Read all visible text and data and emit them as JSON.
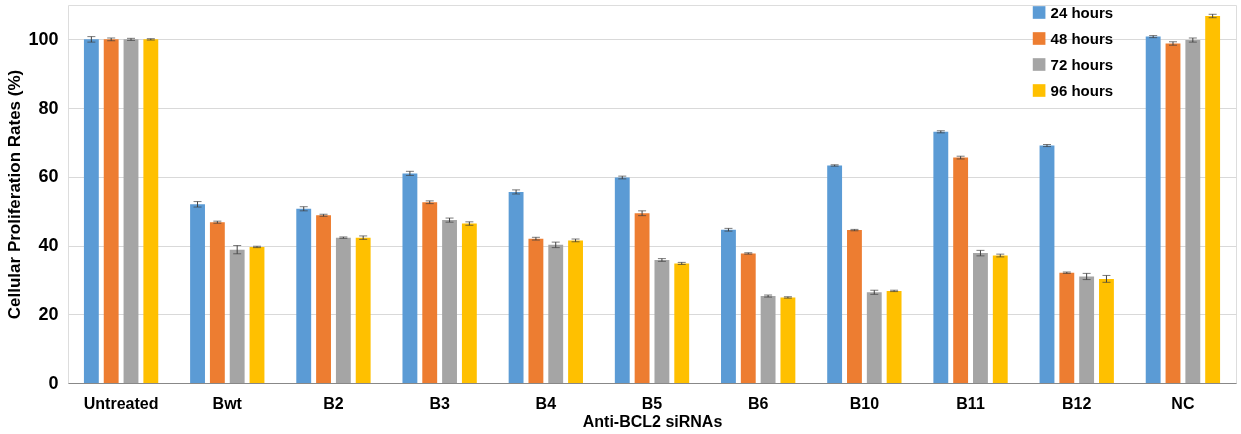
{
  "chart_data": {
    "type": "bar",
    "xlabel": "Anti-BCL2 siRNAs",
    "ylabel": "Cellular Proliferation Rates (%)",
    "categories": [
      "Untreated",
      "Bwt",
      "B2",
      "B3",
      "B4",
      "B5",
      "B6",
      "B10",
      "B11",
      "B12",
      "NC"
    ],
    "series": [
      {
        "name": "24 hours",
        "color": "#5b9bd5",
        "values": [
          100,
          52,
          50.7,
          61,
          55.6,
          59.8,
          44.6,
          63.3,
          73.1,
          69.1,
          100.8
        ],
        "errors": [
          0.8,
          0.8,
          0.6,
          0.6,
          0.6,
          0.4,
          0.4,
          0.2,
          0.3,
          0.3,
          0.3
        ]
      },
      {
        "name": "48 hours",
        "color": "#ed7d31",
        "values": [
          100,
          46.8,
          48.8,
          52.6,
          42,
          49.4,
          37.7,
          44.5,
          65.6,
          32.1,
          98.8
        ],
        "errors": [
          0.4,
          0.3,
          0.3,
          0.4,
          0.4,
          0.7,
          0.2,
          0.2,
          0.4,
          0.2,
          0.5
        ]
      },
      {
        "name": "72 hours",
        "color": "#a5a5a5",
        "values": [
          100,
          38.8,
          42.3,
          47.4,
          40.2,
          35.8,
          25.3,
          26.4,
          37.8,
          31,
          99.8
        ],
        "errors": [
          0.3,
          1.2,
          0.2,
          0.6,
          0.8,
          0.4,
          0.3,
          0.6,
          0.8,
          0.9,
          0.6
        ]
      },
      {
        "name": "96 hours",
        "color": "#ffc000",
        "values": [
          100,
          39.6,
          42.3,
          46.4,
          41.5,
          34.8,
          24.9,
          26.8,
          37.1,
          30.3,
          106.8
        ],
        "errors": [
          0.2,
          0.2,
          0.5,
          0.5,
          0.4,
          0.3,
          0.2,
          0.2,
          0.4,
          1.0,
          0.5
        ]
      }
    ],
    "ylim": [
      0,
      110
    ],
    "yticks": [
      0,
      20,
      40,
      60,
      80,
      100
    ],
    "grid": "y",
    "legend": "top right"
  }
}
